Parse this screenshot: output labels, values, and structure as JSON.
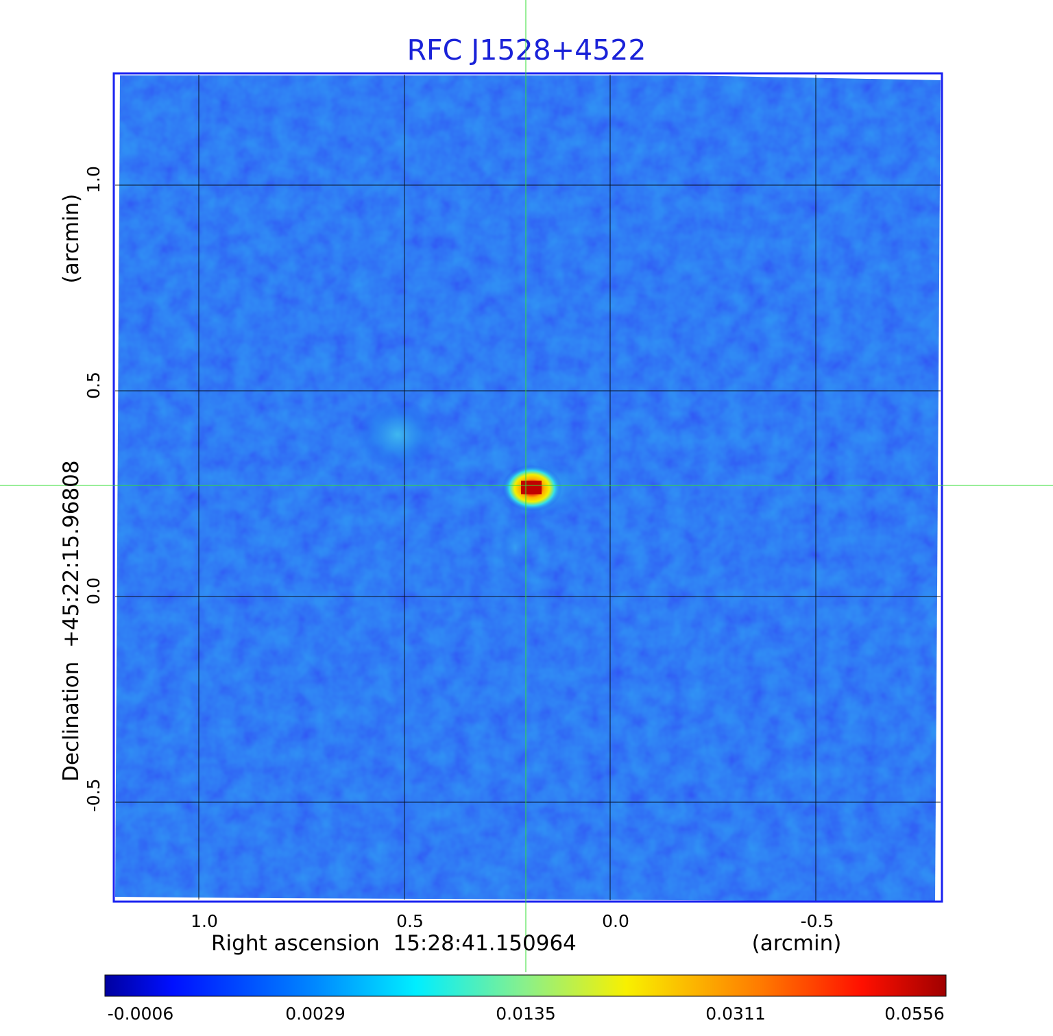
{
  "title": "RFC J1528+4522",
  "colors": {
    "title": "#1a22d8",
    "frame": "#1a22f0",
    "grid": "#000000",
    "crosshair": "#33dd33",
    "background_map": "#1d4ff2"
  },
  "x_axis": {
    "label": "Right ascension  15:28:41.150964",
    "unit": "(arcmin)",
    "ticks": [
      "1.0",
      "0.5",
      "0.0",
      "-0.5"
    ]
  },
  "y_axis": {
    "label": "Declination  +45:22:15.96808",
    "unit": "(arcmin)",
    "ticks": [
      "1.0",
      "0.5",
      "0.0",
      "-0.5"
    ]
  },
  "colorbar": {
    "colormap": "jet",
    "tick_labels": [
      "-0.0006",
      "0.0029",
      "0.0135",
      "0.0311",
      "0.0556"
    ]
  },
  "features": {
    "crosshair_offset_arcmin": {
      "ra": 0.206,
      "dec": 0.27
    },
    "bright_source_offset_arcmin": {
      "ra": 0.206,
      "dec": 0.265
    },
    "faint_blob_offset_arcmin": {
      "ra": 0.52,
      "dec": 0.39
    }
  }
}
